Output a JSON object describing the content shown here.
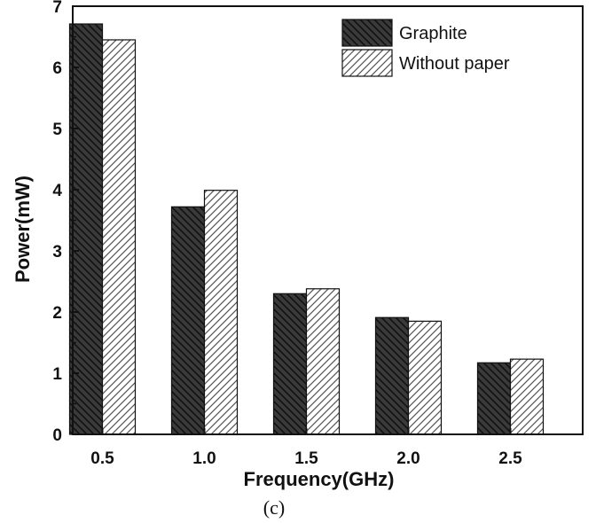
{
  "chart_data": {
    "type": "bar",
    "categories": [
      "0.5",
      "1.0",
      "1.5",
      "2.0",
      "2.5"
    ],
    "series": [
      {
        "name": "Graphite",
        "values": [
          6.71,
          3.72,
          2.3,
          1.91,
          1.17
        ],
        "color": "#3a3a3a",
        "hatch": "backslash"
      },
      {
        "name": "Without paper",
        "values": [
          6.45,
          3.99,
          2.38,
          1.85,
          1.23
        ],
        "color": "#ffffff",
        "hatch": "slash"
      }
    ],
    "xlabel": "Frequency(GHz)",
    "ylabel": "Power(mW)",
    "ylim": [
      0,
      7
    ],
    "yticks": [
      "0",
      "1",
      "2",
      "3",
      "4",
      "5",
      "6",
      "7"
    ],
    "legend_position": "top-right",
    "grid": false,
    "caption": "(c)"
  }
}
